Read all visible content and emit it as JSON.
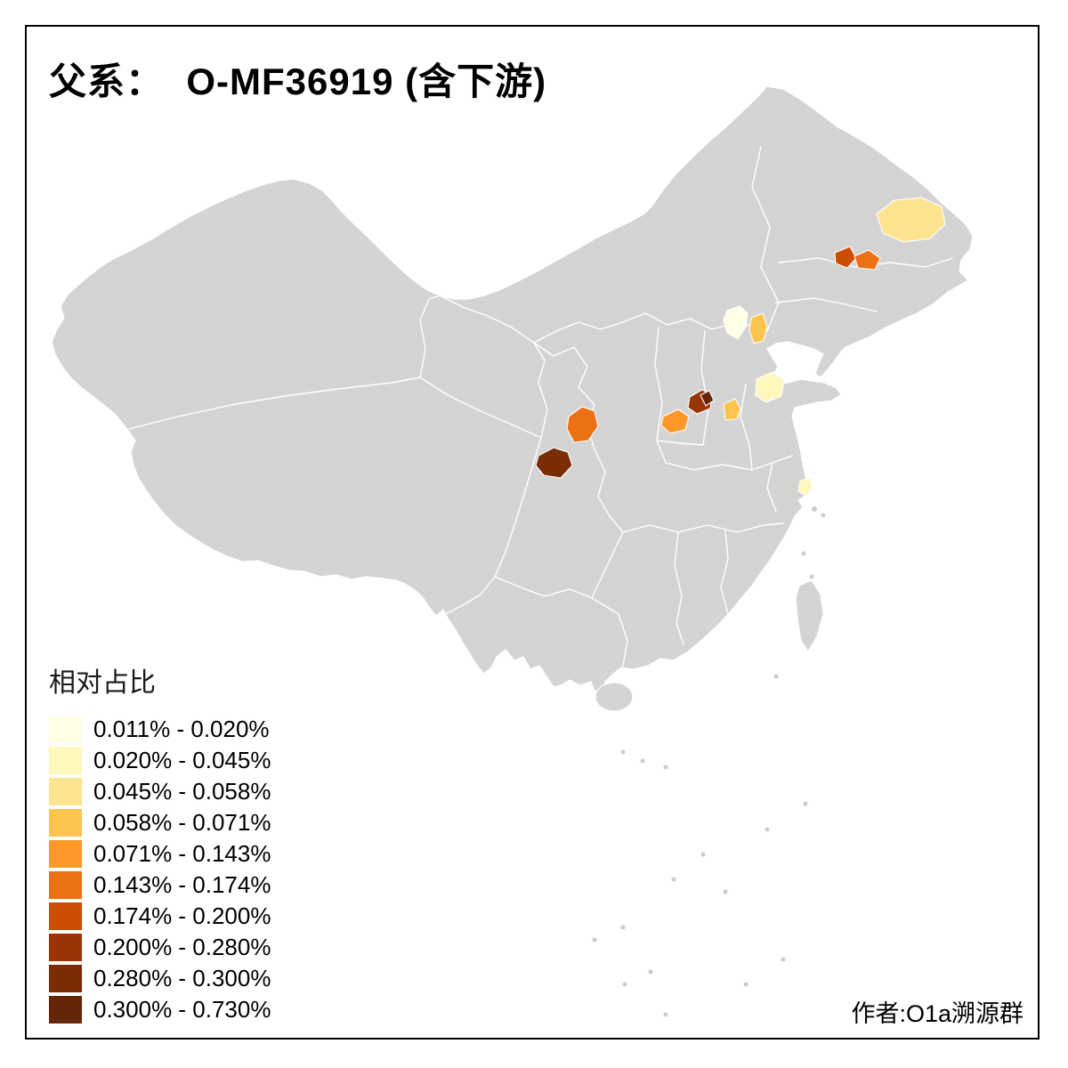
{
  "title": "父系：  O-MF36919 (含下游)",
  "credit": "作者:O1a溯源群",
  "legend": {
    "title": "相对占比",
    "items": [
      {
        "label": "0.011% - 0.020%",
        "color": "#FFFFE5"
      },
      {
        "label": "0.020% - 0.045%",
        "color": "#FFF7BC"
      },
      {
        "label": "0.045% - 0.058%",
        "color": "#FEE391"
      },
      {
        "label": "0.058% - 0.071%",
        "color": "#FEC44F"
      },
      {
        "label": "0.071% - 0.143%",
        "color": "#FE9929"
      },
      {
        "label": "0.143% - 0.174%",
        "color": "#EC7014"
      },
      {
        "label": "0.174% - 0.200%",
        "color": "#CC4C02"
      },
      {
        "label": "0.200% - 0.280%",
        "color": "#993404"
      },
      {
        "label": "0.280% - 0.300%",
        "color": "#7A2D04"
      },
      {
        "label": "0.300% - 0.730%",
        "color": "#662506"
      }
    ]
  },
  "map": {
    "base_fill": "#D4D4D4",
    "border_color": "#FFFFFF",
    "highlights": [
      {
        "id": "region-northeast-pale",
        "color": "#FEE391"
      },
      {
        "id": "region-northeast-dark",
        "color": "#CC4C02"
      },
      {
        "id": "region-northeast-orange",
        "color": "#EC7014"
      },
      {
        "id": "region-beijing",
        "color": "#FFFFE5"
      },
      {
        "id": "region-east-of-beijing",
        "color": "#FEC44F"
      },
      {
        "id": "region-shandong",
        "color": "#FFF7BC"
      },
      {
        "id": "region-central-dark",
        "color": "#993404"
      },
      {
        "id": "region-central-darkest",
        "color": "#662506"
      },
      {
        "id": "region-central-orange-1",
        "color": "#FE9929"
      },
      {
        "id": "region-central-orange-2",
        "color": "#FEC44F"
      },
      {
        "id": "region-shaanxi-south",
        "color": "#EC7014"
      },
      {
        "id": "region-sichuan-north",
        "color": "#7A2D04"
      },
      {
        "id": "region-shanghai",
        "color": "#FFF7BC"
      }
    ]
  },
  "chart_data": {
    "type": "heatmap",
    "subtype": "choropleth-map",
    "region": "China",
    "title": "父系：  O-MF36919 (含下游)",
    "legend_title": "相对占比",
    "legend_position": "bottom-left",
    "bins": [
      "0.011% - 0.020%",
      "0.020% - 0.045%",
      "0.045% - 0.058%",
      "0.058% - 0.071%",
      "0.071% - 0.143%",
      "0.143% - 0.174%",
      "0.174% - 0.200%",
      "0.200% - 0.280%",
      "0.280% - 0.300%",
      "0.300% - 0.730%"
    ],
    "bin_colors": [
      "#FFFFE5",
      "#FFF7BC",
      "#FEE391",
      "#FEC44F",
      "#FE9929",
      "#EC7014",
      "#CC4C02",
      "#993404",
      "#7A2D04",
      "#662506"
    ],
    "no_data_color": "#D4D4D4",
    "annotation": "作者:O1a溯源群"
  }
}
